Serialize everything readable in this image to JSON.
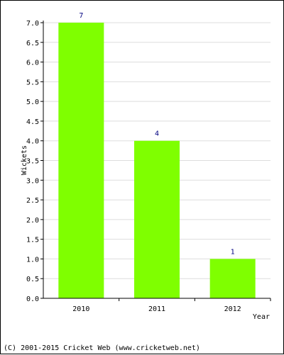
{
  "chart_data": {
    "type": "bar",
    "categories": [
      "2010",
      "2011",
      "2012"
    ],
    "values": [
      7,
      4,
      1
    ],
    "data_labels": [
      "7",
      "4",
      "1"
    ],
    "ylabel": "Wickets",
    "xlabel": "Year",
    "ylim": [
      0,
      7
    ],
    "yticks": [
      "0.0",
      "0.5",
      "1.0",
      "1.5",
      "2.0",
      "2.5",
      "3.0",
      "3.5",
      "4.0",
      "4.5",
      "5.0",
      "5.5",
      "6.0",
      "6.5",
      "7.0"
    ],
    "grid": true,
    "bar_color": "#7fff00"
  },
  "footer": "(C) 2001-2015 Cricket Web (www.cricketweb.net)"
}
